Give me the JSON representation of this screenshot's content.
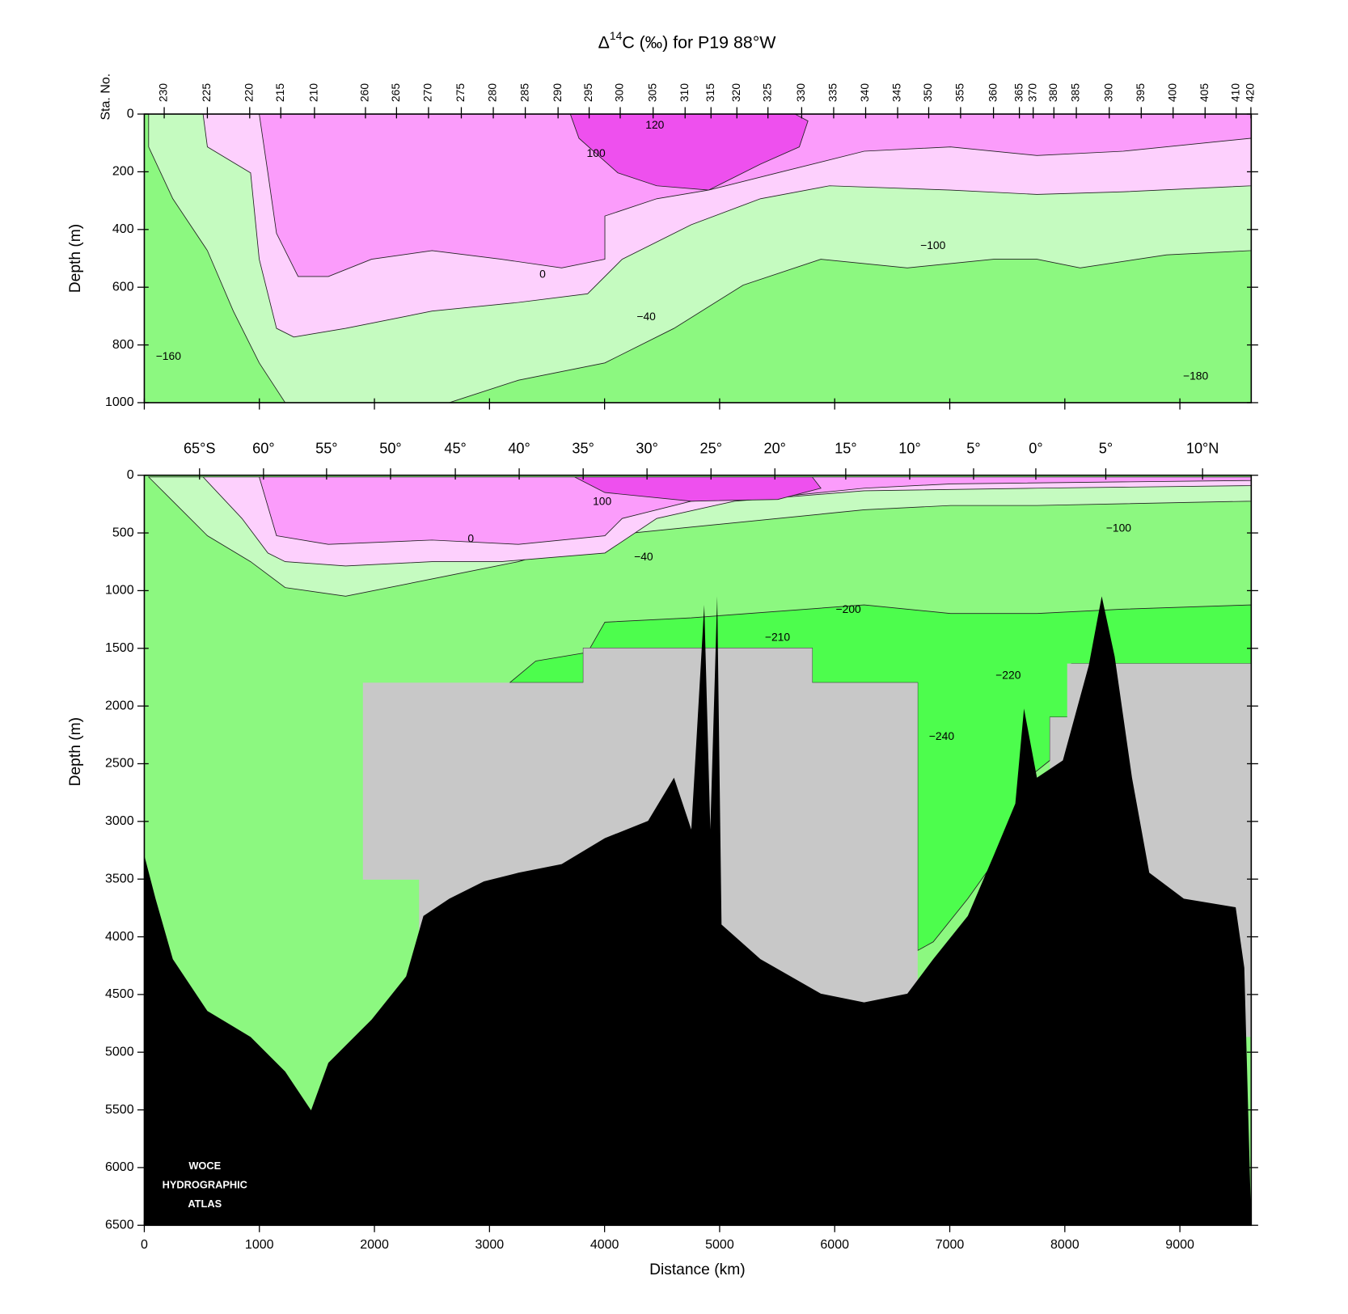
{
  "chart_data": [
    {
      "type": "contour",
      "title": {
        "symbol": "Δ",
        "superscript": "14",
        "text": "C (‰) for P19 88°W"
      },
      "station_label": "Sta. No.",
      "y_label": "Depth (m)",
      "xlim": [
        0,
        9620
      ],
      "ylim": [
        0,
        1000
      ],
      "y_inverted": true,
      "xticks": [
        0,
        1000,
        2000,
        3000,
        4000,
        5000,
        6000,
        7000,
        8000,
        9000
      ],
      "yticks": [
        0,
        200,
        400,
        600,
        800,
        1000
      ],
      "station_ticks": [
        {
          "value": 173,
          "label": "230"
        },
        {
          "value": 548,
          "label": "225"
        },
        {
          "value": 916,
          "label": "220"
        },
        {
          "value": 1186,
          "label": "215"
        },
        {
          "value": 1479,
          "label": "210"
        },
        {
          "value": 1922,
          "label": "260"
        },
        {
          "value": 2192,
          "label": "265"
        },
        {
          "value": 2470,
          "label": "270"
        },
        {
          "value": 2755,
          "label": "275"
        },
        {
          "value": 3033,
          "label": "280"
        },
        {
          "value": 3311,
          "label": "285"
        },
        {
          "value": 3596,
          "label": "290"
        },
        {
          "value": 3866,
          "label": "295"
        },
        {
          "value": 4136,
          "label": "300"
        },
        {
          "value": 4422,
          "label": "305"
        },
        {
          "value": 4700,
          "label": "310"
        },
        {
          "value": 4925,
          "label": "315"
        },
        {
          "value": 5150,
          "label": "320"
        },
        {
          "value": 5420,
          "label": "325"
        },
        {
          "value": 5713,
          "label": "330"
        },
        {
          "value": 5991,
          "label": "335"
        },
        {
          "value": 6269,
          "label": "340"
        },
        {
          "value": 6547,
          "label": "345"
        },
        {
          "value": 6817,
          "label": "350"
        },
        {
          "value": 7094,
          "label": "355"
        },
        {
          "value": 7380,
          "label": "360"
        },
        {
          "value": 7605,
          "label": "365"
        },
        {
          "value": 7725,
          "label": "370"
        },
        {
          "value": 7905,
          "label": "380"
        },
        {
          "value": 8100,
          "label": "385"
        },
        {
          "value": 8386,
          "label": "390"
        },
        {
          "value": 8664,
          "label": "395"
        },
        {
          "value": 8941,
          "label": "400"
        },
        {
          "value": 9219,
          "label": "405"
        },
        {
          "value": 9489,
          "label": "410"
        },
        {
          "value": 9617,
          "label": "420"
        }
      ],
      "contour_labels": [
        {
          "label": "120",
          "x": 4437,
          "depth": 40
        },
        {
          "label": "100",
          "x": 3926,
          "depth": 138
        },
        {
          "label": "0",
          "x": 3461,
          "depth": 557
        },
        {
          "label": "−40",
          "x": 4362,
          "depth": 704
        },
        {
          "label": "−160",
          "x": 210,
          "depth": 841
        },
        {
          "label": "−100",
          "x": 6854,
          "depth": 458
        },
        {
          "label": "−180",
          "x": 9137,
          "depth": 910
        }
      ],
      "fill_colors": [
        "#8cf880",
        "#c5fbc0",
        "#fdd0fd",
        "#fb9cfb",
        "#ee50ee"
      ]
    },
    {
      "type": "contour",
      "y_label": "Depth (m)",
      "x_label": "Distance (km)",
      "xlim": [
        0,
        9620
      ],
      "ylim": [
        0,
        6500
      ],
      "y_inverted": true,
      "xticks": [
        0,
        1000,
        2000,
        3000,
        4000,
        5000,
        6000,
        7000,
        8000,
        9000
      ],
      "yticks": [
        0,
        500,
        1000,
        1500,
        2000,
        2500,
        3000,
        3500,
        4000,
        4500,
        5000,
        5500,
        6000,
        6500
      ],
      "lat_ticks": [
        {
          "value": 480,
          "label": "65°S"
        },
        {
          "value": 1036,
          "label": "60°"
        },
        {
          "value": 1584,
          "label": "55°"
        },
        {
          "value": 2140,
          "label": "50°"
        },
        {
          "value": 2703,
          "label": "45°"
        },
        {
          "value": 3258,
          "label": "40°"
        },
        {
          "value": 3814,
          "label": "35°"
        },
        {
          "value": 4369,
          "label": "30°"
        },
        {
          "value": 4925,
          "label": "25°"
        },
        {
          "value": 5480,
          "label": "20°"
        },
        {
          "value": 6096,
          "label": "15°"
        },
        {
          "value": 6652,
          "label": "10°"
        },
        {
          "value": 7207,
          "label": "5°"
        },
        {
          "value": 7748,
          "label": "0°"
        },
        {
          "value": 8356,
          "label": "5°"
        },
        {
          "value": 9197,
          "label": "10°N"
        }
      ],
      "contour_labels": [
        {
          "label": "100",
          "x": 3979,
          "depth": 232
        },
        {
          "label": "0",
          "x": 2838,
          "depth": 554
        },
        {
          "label": "−40",
          "x": 4339,
          "depth": 712
        },
        {
          "label": "−100",
          "x": 8468,
          "depth": 464
        },
        {
          "label": "−200",
          "x": 6119,
          "depth": 1168
        },
        {
          "label": "−210",
          "x": 5503,
          "depth": 1408
        },
        {
          "label": "−220",
          "x": 7508,
          "depth": 1737
        },
        {
          "label": "−240",
          "x": 6929,
          "depth": 2269
        }
      ],
      "fill_colors": [
        "#8cf880",
        "#c5fbc0",
        "#fdd0fd",
        "#fb9cfb",
        "#ee50ee",
        "#4dfd4d",
        "#c8c8c8",
        "#000000"
      ],
      "logo_text": [
        "WOCE",
        "HYDROGRAPHIC",
        "ATLAS"
      ]
    }
  ]
}
